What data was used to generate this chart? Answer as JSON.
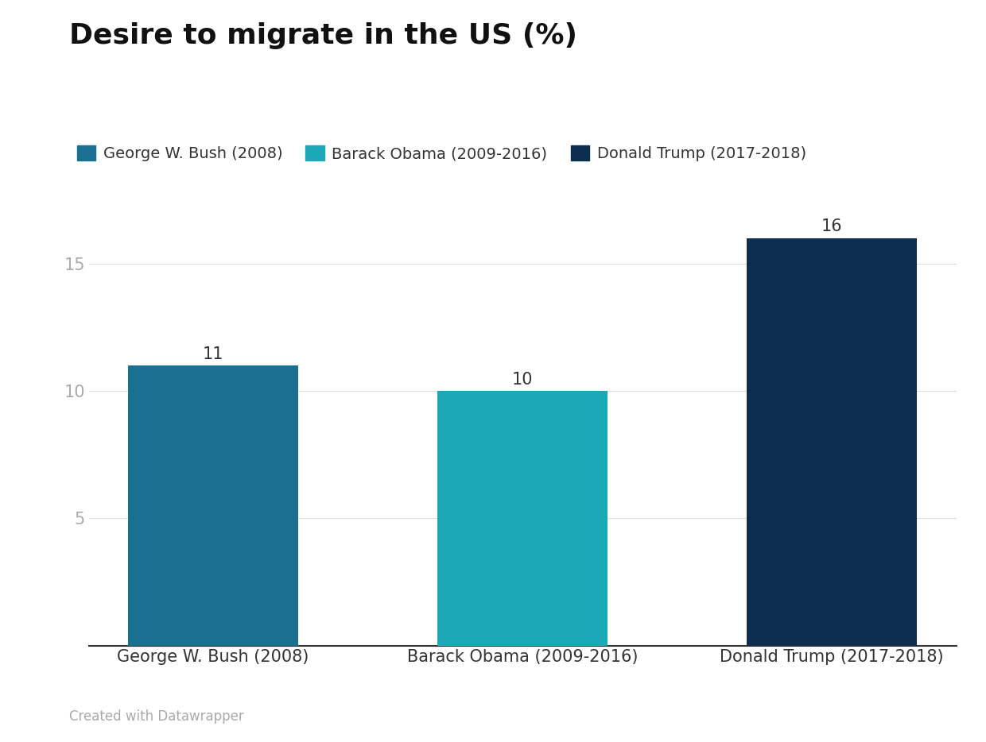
{
  "title": "Desire to migrate in the US (%)",
  "categories": [
    "George W. Bush (2008)",
    "Barack Obama (2009-2016)",
    "Donald Trump (2017-2018)"
  ],
  "values": [
    11,
    10,
    16
  ],
  "bar_colors": [
    "#1a7091",
    "#1da8b8",
    "#0d2d4e"
  ],
  "legend_labels": [
    "George W. Bush (2008)",
    "Barack Obama (2009-2016)",
    "Donald Trump (2017-2018)"
  ],
  "legend_colors": [
    "#1a7091",
    "#1da8b8",
    "#0d2d4e"
  ],
  "yticks": [
    5,
    10,
    15
  ],
  "ylim": [
    0,
    17.5
  ],
  "background_color": "#ffffff",
  "grid_color": "#dddddd",
  "tick_color": "#aaaaaa",
  "label_color": "#333333",
  "title_fontsize": 26,
  "legend_fontsize": 14,
  "tick_fontsize": 15,
  "bar_label_fontsize": 15,
  "xtick_fontsize": 15,
  "annotation": "Created with Datawrapper",
  "annotation_color": "#aaaaaa",
  "annotation_fontsize": 12
}
